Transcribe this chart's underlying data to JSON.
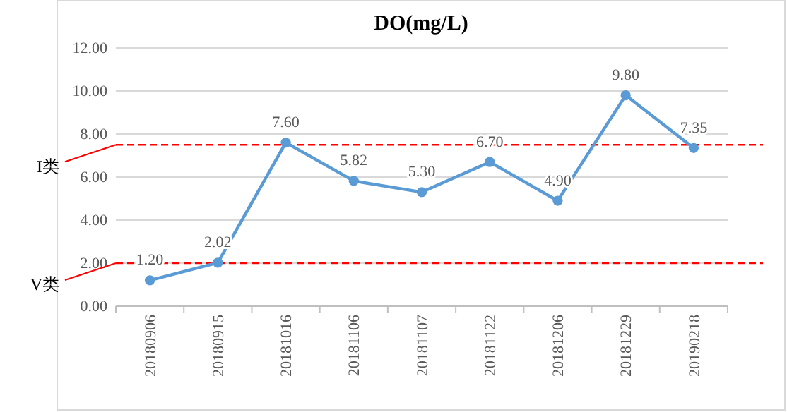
{
  "chart_data": {
    "type": "line",
    "title": "DO(mg/L)",
    "categories": [
      "20180906",
      "20180915",
      "20181016",
      "20181106",
      "20181107",
      "20181122",
      "20181206",
      "20181229",
      "20190218"
    ],
    "series": [
      {
        "color": "#5b9bd5",
        "values": [
          1.2,
          2.02,
          7.6,
          5.82,
          5.3,
          6.7,
          4.9,
          9.8,
          7.35
        ]
      }
    ],
    "value_labels": [
      "1.20",
      "2.02",
      "7.60",
      "5.82",
      "5.30",
      "6.70",
      "4.90",
      "9.80",
      "7.35"
    ],
    "ylim": [
      0,
      12
    ],
    "yticks": [
      {
        "value": 0,
        "label": "0.00"
      },
      {
        "value": 2,
        "label": "2.00"
      },
      {
        "value": 4,
        "label": "4.00"
      },
      {
        "value": 6,
        "label": "6.00"
      },
      {
        "value": 8,
        "label": "8.00"
      },
      {
        "value": 10,
        "label": "10.00"
      },
      {
        "value": 12,
        "label": "12.00"
      }
    ],
    "grid": "y",
    "marker": "circle",
    "line_style": "solid",
    "ref_lines": [
      {
        "axis": "y",
        "value": 7.5,
        "label": "I类",
        "color": "#ff0000",
        "line_style": "dashed"
      },
      {
        "axis": "y",
        "value": 2,
        "label": "V类",
        "color": "#ff0000",
        "line_style": "dashed"
      }
    ]
  }
}
